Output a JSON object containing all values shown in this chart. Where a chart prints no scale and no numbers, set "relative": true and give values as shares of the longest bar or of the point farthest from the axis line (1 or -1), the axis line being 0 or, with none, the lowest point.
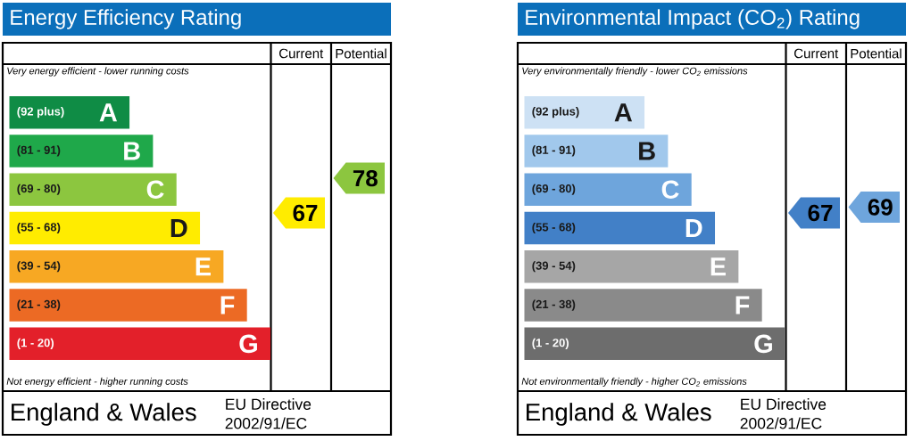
{
  "chart_data": [
    {
      "type": "bar",
      "orientation": "horizontal",
      "relative": true,
      "title": "Energy Efficiency Rating",
      "categories": [
        "(92 plus)",
        "(81 - 91)",
        "(69 - 80)",
        "(55 - 68)",
        "(39 - 54)",
        "(21 - 38)",
        "(1 - 20)"
      ],
      "values": [
        0.46,
        0.55,
        0.64,
        0.73,
        0.82,
        0.91,
        1
      ],
      "colors": [
        "#0f8c45",
        "#1fa84a",
        "#8cc63f",
        "#ffec00",
        "#f7a823",
        "#ec6a24",
        "#e3202a"
      ],
      "annotations": [
        "Very energy efficient - lower running costs",
        "Not energy efficient - higher running costs",
        "Current",
        "Potential",
        "England & Wales",
        "EU Directive",
        "2002/91/EC",
        "67",
        "78",
        {
          "text": "A",
          "y": "(92 plus)"
        },
        {
          "text": "B",
          "y": "(81 - 91)"
        },
        {
          "text": "C",
          "y": "(69 - 80)"
        },
        {
          "text": "D",
          "y": "(55 - 68)"
        },
        {
          "text": "E",
          "y": "(39 - 54)"
        },
        {
          "text": "F",
          "y": "(21 - 38)"
        },
        {
          "text": "G",
          "y": "(1 - 20)"
        }
      ]
    },
    {
      "type": "bar",
      "orientation": "horizontal",
      "relative": true,
      "title": "Environmental Impact (CO$_{2}$) Rating",
      "categories": [
        "(92 plus)",
        "(81 - 91)",
        "(69 - 80)",
        "(55 - 68)",
        "(39 - 54)",
        "(21 - 38)",
        "(1 - 20)"
      ],
      "values": [
        0.46,
        0.55,
        0.64,
        0.73,
        0.82,
        0.91,
        1
      ],
      "colors": [
        "#cde1f4",
        "#a1c8ec",
        "#6ea5dc",
        "#4280c7",
        "#a6a6a6",
        "#8a8a8a",
        "#6d6d6d"
      ],
      "annotations": [
        "Very environmentally friendly - lower CO$_{2}$ emissions",
        "Not environmentally friendly - higher CO$_{2}$ emissions",
        "Current",
        "Potential",
        "England & Wales",
        "EU Directive",
        "2002/91/EC",
        "67",
        "69",
        {
          "text": "A",
          "y": "(92 plus)"
        },
        {
          "text": "B",
          "y": "(81 - 91)"
        },
        {
          "text": "C",
          "y": "(69 - 80)"
        },
        {
          "text": "D",
          "y": "(55 - 68)"
        },
        {
          "text": "E",
          "y": "(39 - 54)"
        },
        {
          "text": "F",
          "y": "(21 - 38)"
        },
        {
          "text": "G",
          "y": "(1 - 20)"
        }
      ]
    }
  ]
}
